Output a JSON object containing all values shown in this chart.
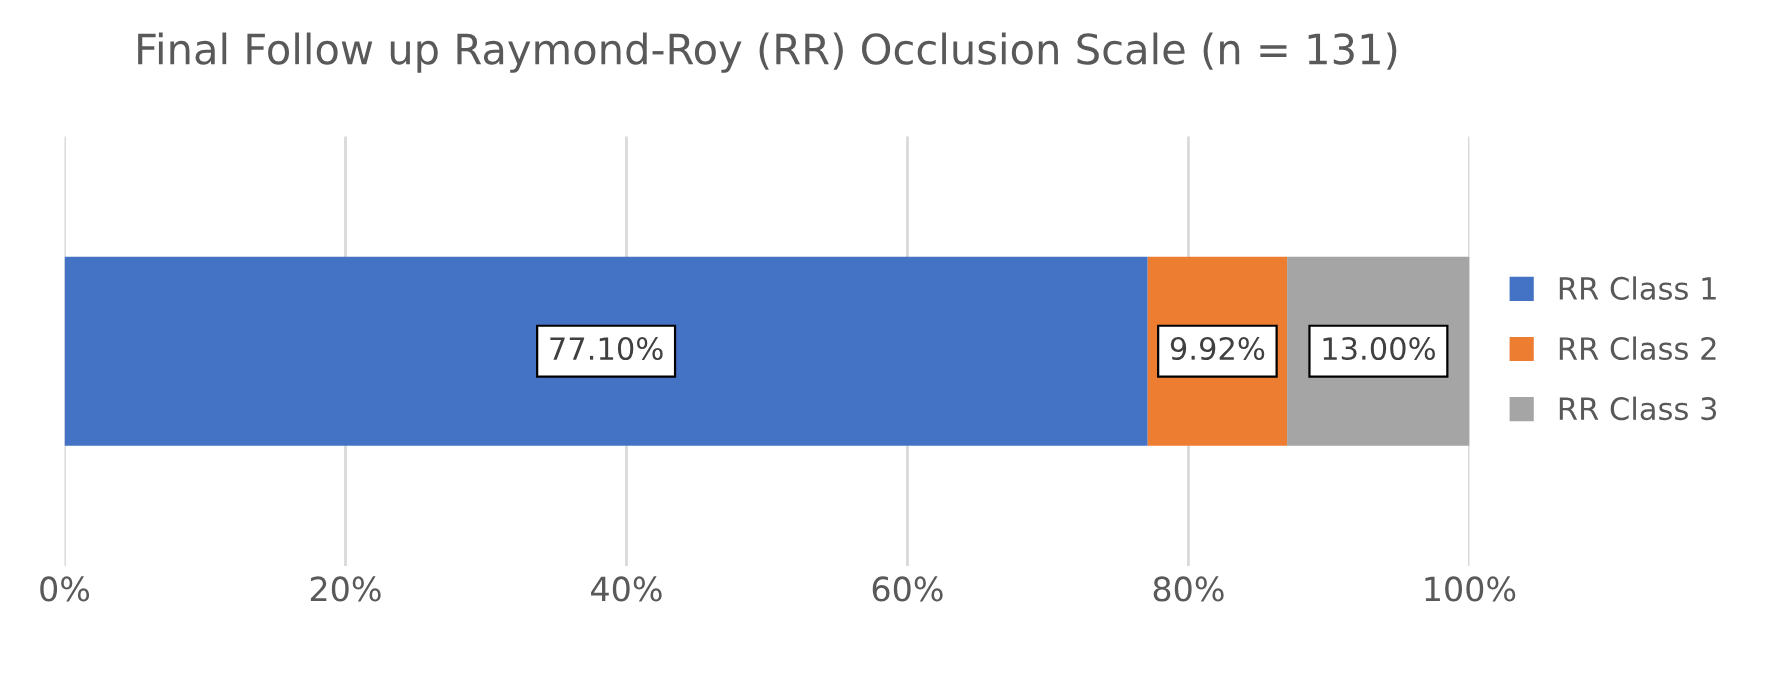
{
  "chart_data": {
    "type": "bar",
    "orientation": "horizontal",
    "stacked": true,
    "title": "Final Follow up Raymond-Roy (RR) Occlusion Scale (n = 131)",
    "categories": [
      null
    ],
    "series": [
      {
        "name": "RR Class 1",
        "color": "#4472c4",
        "values": [
          77.1
        ],
        "value_labels": [
          "77.10%"
        ]
      },
      {
        "name": "RR Class 2",
        "color": "#ed7d31",
        "values": [
          9.92
        ],
        "value_labels": [
          "9.92%"
        ]
      },
      {
        "name": "RR Class 3",
        "color": "#a5a5a5",
        "values": [
          13.0
        ],
        "value_labels": [
          "13.00%"
        ]
      }
    ],
    "xlim": [
      0,
      100
    ],
    "xticks": [
      {
        "value": 0,
        "label": "0%"
      },
      {
        "value": 20,
        "label": "20%"
      },
      {
        "value": 40,
        "label": "40%"
      },
      {
        "value": 60,
        "label": "60%"
      },
      {
        "value": 80,
        "label": "80%"
      },
      {
        "value": 100,
        "label": "100%"
      }
    ],
    "grid": "x",
    "legend": "right"
  }
}
